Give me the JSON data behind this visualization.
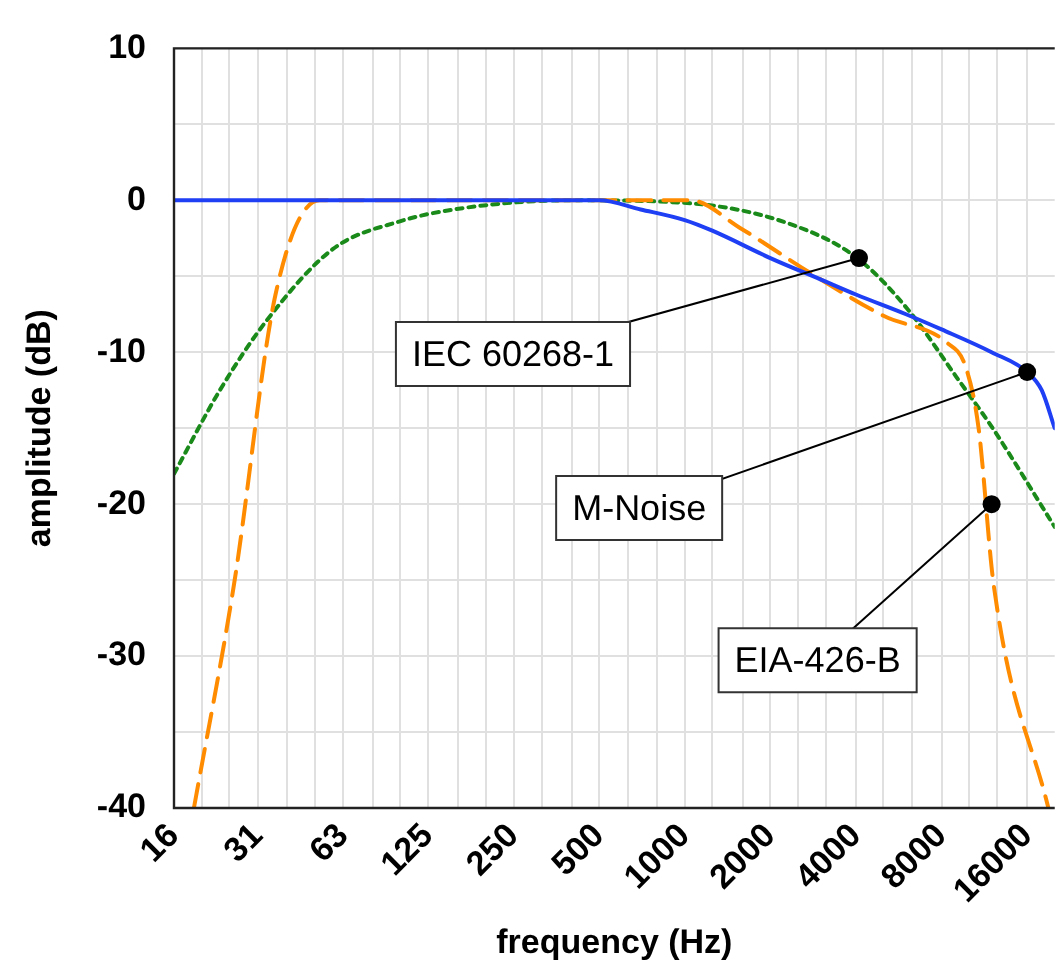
{
  "chart_data": {
    "type": "line",
    "xlabel": "frequency (Hz)",
    "ylabel": "amplitude (dB)",
    "log": "x",
    "grid": true,
    "legend": false,
    "marker": "none",
    "xlim": [
      16,
      20000
    ],
    "xticks": [
      16,
      {
        "value": 20,
        "label": null
      },
      {
        "value": 25,
        "label": null
      },
      {
        "value": 31.5,
        "label": "31"
      },
      {
        "value": 40,
        "label": null
      },
      {
        "value": 50,
        "label": null
      },
      63,
      {
        "value": 80,
        "label": null
      },
      {
        "value": 100,
        "label": null
      },
      125,
      {
        "value": 160,
        "label": null
      },
      {
        "value": 200,
        "label": null
      },
      250,
      {
        "value": 315,
        "label": null
      },
      {
        "value": 400,
        "label": null
      },
      500,
      {
        "value": 630,
        "label": null
      },
      {
        "value": 800,
        "label": null
      },
      1000,
      {
        "value": 1250,
        "label": null
      },
      {
        "value": 1600,
        "label": null
      },
      2000,
      {
        "value": 2500,
        "label": null
      },
      {
        "value": 3150,
        "label": null
      },
      4000,
      {
        "value": 5000,
        "label": null
      },
      {
        "value": 6300,
        "label": null
      },
      8000,
      {
        "value": 10000,
        "label": null
      },
      {
        "value": 12500,
        "label": null
      },
      16000
    ],
    "ylim": [
      -40,
      10
    ],
    "yticks": [
      -40,
      {
        "value": -35,
        "label": null
      },
      -30,
      {
        "value": -25,
        "label": null
      },
      -20,
      {
        "value": -15,
        "label": null
      },
      -10,
      {
        "value": -5,
        "label": null
      },
      0,
      {
        "value": 5,
        "label": null
      },
      10
    ],
    "series": [
      {
        "color": "#1f3ff5",
        "line_style": "solid",
        "x": [
          16,
          500,
          700,
          1000,
          1250,
          2000,
          3000,
          4000,
          6000,
          8000,
          12000,
          16000,
          18000,
          20000
        ],
        "values": [
          0,
          0,
          -0.6,
          -1.3,
          -2,
          -3.8,
          -5.2,
          -6.2,
          -7.5,
          -8.5,
          -10,
          -11.3,
          -12.5,
          -15
        ]
      },
      {
        "color": "#ff8c00",
        "line_style": "dashed",
        "x": [
          18.8,
          26,
          36.4,
          52,
          1050,
          1560,
          2720,
          5000,
          8400,
          9740,
          10800,
          12200,
          19000
        ],
        "values": [
          -40,
          -25.3,
          -6.2,
          0,
          0,
          -1.8,
          -4.7,
          -7.6,
          -9.4,
          -11,
          -15,
          -25.3,
          -40
        ]
      },
      {
        "color": "#1a8a1a",
        "line_style": "dotted",
        "x": [
          16,
          23.2,
          33.6,
          58,
          99,
          168,
          400,
          1050,
          2380,
          4040,
          6100,
          9000,
          12200,
          20000
        ],
        "values": [
          -18,
          -12.5,
          -8,
          -3.2,
          -1.4,
          -0.5,
          0,
          -0.2,
          -1.6,
          -3.8,
          -7.2,
          -11.6,
          -15.1,
          -21.5
        ]
      }
    ],
    "annotations": [
      {
        "text": "IEC 60268-1",
        "x": 4100,
        "y": -3.8
      },
      {
        "text": "M-Noise",
        "x": 16000,
        "y": -11.3
      },
      {
        "text": "EIA-426-B",
        "x": 12000,
        "y": -20
      }
    ]
  }
}
